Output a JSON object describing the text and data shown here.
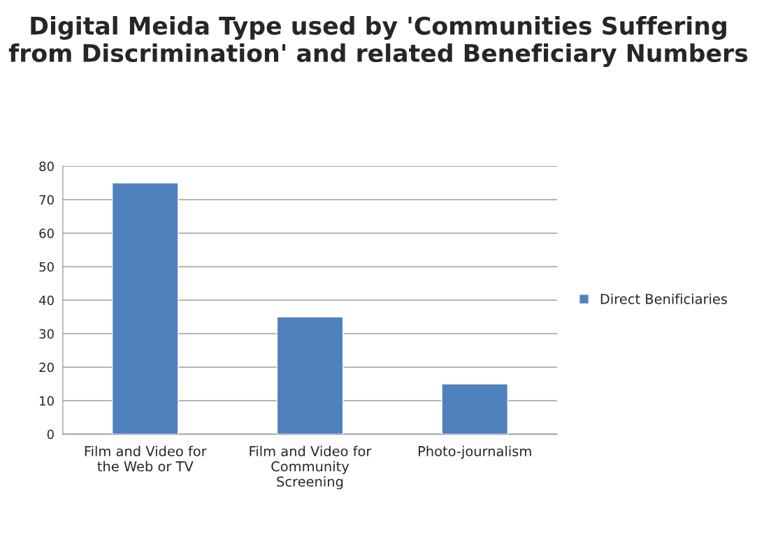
{
  "chart_data": {
    "type": "bar",
    "title": "Digital Meida Type used by 'Communities Suffering from Discrimination' and related Beneficiary Numbers",
    "categories": [
      "Film and Video for\nthe Web or TV",
      "Film and Video for\nCommunity\nScreening",
      "Photo-journalism"
    ],
    "series": [
      {
        "name": "Direct Benificiaries",
        "color": "#4f81bd",
        "values": [
          75,
          35,
          15
        ]
      }
    ],
    "ylim": [
      0,
      80
    ],
    "yticks": [
      0,
      10,
      20,
      30,
      40,
      50,
      60,
      70,
      80
    ],
    "grid": "y",
    "legend": "right"
  }
}
